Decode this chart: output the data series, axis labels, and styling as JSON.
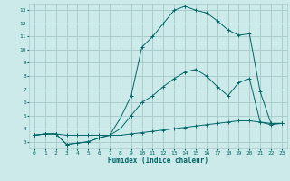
{
  "xlabel": "Humidex (Indice chaleur)",
  "bg_color": "#cceaea",
  "grid_color": "#aacccc",
  "line_color": "#006666",
  "xlim": [
    -0.5,
    23.5
  ],
  "ylim": [
    2.5,
    13.5
  ],
  "xticks": [
    0,
    1,
    2,
    3,
    4,
    5,
    6,
    7,
    8,
    9,
    10,
    11,
    12,
    13,
    14,
    15,
    16,
    17,
    18,
    19,
    20,
    21,
    22,
    23
  ],
  "yticks": [
    3,
    4,
    5,
    6,
    7,
    8,
    9,
    10,
    11,
    12,
    13
  ],
  "line1_x": [
    0,
    1,
    2,
    3,
    4,
    5,
    6,
    7,
    8,
    9,
    10,
    11,
    12,
    13,
    14,
    15,
    16,
    17,
    18,
    19,
    20,
    21,
    22,
    23
  ],
  "line1_y": [
    3.5,
    3.6,
    3.6,
    3.5,
    3.5,
    3.5,
    3.5,
    3.5,
    3.5,
    3.6,
    3.7,
    3.8,
    3.9,
    4.0,
    4.1,
    4.2,
    4.3,
    4.4,
    4.5,
    4.6,
    4.6,
    4.5,
    4.4,
    4.4
  ],
  "line2_x": [
    0,
    1,
    2,
    3,
    4,
    5,
    6,
    7,
    8,
    9,
    10,
    11,
    12,
    13,
    14,
    15,
    16,
    17,
    18,
    19,
    20,
    21,
    22,
    23
  ],
  "line2_y": [
    3.5,
    3.6,
    3.6,
    2.8,
    2.9,
    3.0,
    3.3,
    3.5,
    4.0,
    5.0,
    6.0,
    6.5,
    7.2,
    7.8,
    8.3,
    8.5,
    8.0,
    7.2,
    6.5,
    7.5,
    7.8,
    4.5,
    4.3,
    4.4
  ],
  "line3_x": [
    0,
    1,
    2,
    3,
    4,
    5,
    6,
    7,
    8,
    9,
    10,
    11,
    12,
    13,
    14,
    15,
    16,
    17,
    18,
    19,
    20,
    21,
    22,
    23
  ],
  "line3_y": [
    3.5,
    3.6,
    3.6,
    2.8,
    2.9,
    3.0,
    3.3,
    3.5,
    4.8,
    6.5,
    10.2,
    11.0,
    12.0,
    13.0,
    13.3,
    13.0,
    12.8,
    12.2,
    11.5,
    11.1,
    11.2,
    6.8,
    4.4,
    4.4
  ]
}
